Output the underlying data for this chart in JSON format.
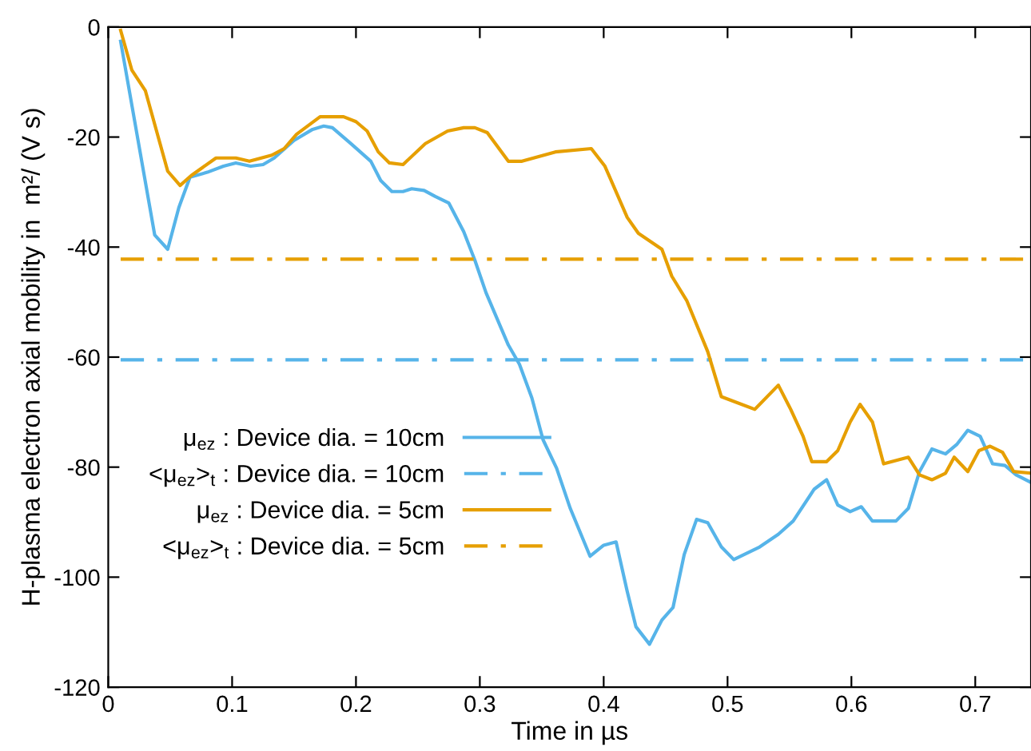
{
  "chart_data": {
    "type": "line",
    "xlabel": "Time in µs",
    "ylabel": "H-plasma electron axial mobility in  m²/ (V s)",
    "xlim": [
      0,
      0.745
    ],
    "ylim": [
      -120,
      0
    ],
    "xticks": [
      0,
      0.1,
      0.2,
      0.3,
      0.4,
      0.5,
      0.6,
      0.7
    ],
    "yticks": [
      -120,
      -100,
      -80,
      -60,
      -40,
      -20,
      0
    ],
    "grid": false,
    "legend": "left",
    "marker": "none",
    "series": [
      {
        "name": "μ$_{ez}$ : Device dia. = 10cm",
        "color": "#56b4e9",
        "x": [
          0.01,
          0.0375,
          0.048,
          0.057,
          0.066,
          0.08,
          0.093,
          0.103,
          0.115,
          0.125,
          0.134,
          0.15,
          0.165,
          0.174,
          0.181,
          0.196,
          0.212,
          0.22,
          0.229,
          0.238,
          0.245,
          0.255,
          0.264,
          0.275,
          0.287,
          0.296,
          0.305,
          0.323,
          0.332,
          0.342,
          0.351,
          0.362,
          0.373,
          0.389,
          0.4,
          0.41,
          0.419,
          0.426,
          0.437,
          0.447,
          0.456,
          0.465,
          0.475,
          0.484,
          0.495,
          0.505,
          0.526,
          0.541,
          0.553,
          0.57,
          0.58,
          0.589,
          0.599,
          0.608,
          0.617,
          0.636,
          0.646,
          0.655,
          0.665,
          0.676,
          0.685,
          0.694,
          0.704,
          0.714,
          0.724,
          0.733,
          0.745
        ],
        "line_style": "solid",
        "values": [
          -2.6,
          -37.8,
          -40.4,
          -32.8,
          -27.3,
          -26.4,
          -25.3,
          -24.7,
          -25.3,
          -25,
          -23.8,
          -20.6,
          -18.6,
          -18,
          -18.3,
          -21.2,
          -24.4,
          -27.9,
          -29.9,
          -29.9,
          -29.4,
          -29.7,
          -30.8,
          -32,
          -37.2,
          -42.4,
          -48.3,
          -57.8,
          -61.3,
          -67.4,
          -75,
          -80.2,
          -87.5,
          -96.2,
          -94.2,
          -93.6,
          -102.6,
          -109,
          -112.2,
          -107.8,
          -105.5,
          -95.9,
          -89.5,
          -90.1,
          -94.5,
          -96.8,
          -94.5,
          -92.2,
          -89.8,
          -84,
          -82.3,
          -86.9,
          -88.1,
          -87.2,
          -89.8,
          -89.8,
          -87.5,
          -80.8,
          -76.7,
          -77.6,
          -75.9,
          -73.3,
          -74.4,
          -79.4,
          -79.7,
          -81.4,
          -82.8
        ]
      },
      {
        "name": "<μ$_{ez}$>$_{t}$ : Device dia. = 10cm",
        "color": "#56b4e9",
        "line_style": "dashdot",
        "x": [
          0.01,
          0.74
        ],
        "values": [
          -60.5,
          -60.5
        ]
      },
      {
        "name": "μ$_{ez}$ : Device dia. = 5cm",
        "color": "#e69f00",
        "x": [
          0.01,
          0.019,
          0.03,
          0.048,
          0.058,
          0.067,
          0.087,
          0.103,
          0.114,
          0.132,
          0.142,
          0.152,
          0.171,
          0.19,
          0.2,
          0.209,
          0.218,
          0.227,
          0.238,
          0.256,
          0.274,
          0.287,
          0.296,
          0.306,
          0.323,
          0.334,
          0.361,
          0.39,
          0.401,
          0.419,
          0.428,
          0.447,
          0.455,
          0.467,
          0.484,
          0.495,
          0.522,
          0.541,
          0.551,
          0.561,
          0.568,
          0.58,
          0.589,
          0.599,
          0.607,
          0.617,
          0.626,
          0.646,
          0.655,
          0.665,
          0.676,
          0.683,
          0.694,
          0.703,
          0.712,
          0.722,
          0.731,
          0.745
        ],
        "line_style": "solid",
        "values": [
          -0.6,
          -7.8,
          -11.6,
          -26.2,
          -28.8,
          -27,
          -23.8,
          -23.8,
          -24.4,
          -23.3,
          -22.1,
          -19.5,
          -16.3,
          -16.3,
          -17.2,
          -18.9,
          -22.7,
          -24.7,
          -25,
          -21.2,
          -18.9,
          -18.3,
          -18.3,
          -19.2,
          -24.4,
          -24.4,
          -22.7,
          -22.1,
          -25.3,
          -34.6,
          -37.5,
          -40.4,
          -45.3,
          -49.7,
          -59,
          -67.2,
          -69.5,
          -65.1,
          -69.5,
          -74.4,
          -79,
          -79,
          -77,
          -71.8,
          -68.6,
          -71.8,
          -79.4,
          -78.2,
          -81.4,
          -82.3,
          -81.1,
          -78.2,
          -80.8,
          -77,
          -76.2,
          -77.3,
          -80.8,
          -81.1
        ]
      },
      {
        "name": "<μ$_{ez}$>$_{t}$ : Device dia. = 5cm",
        "color": "#e69f00",
        "line_style": "dashdot",
        "x": [
          0.01,
          0.745
        ],
        "values": [
          -42.2,
          -42.2
        ]
      }
    ]
  }
}
